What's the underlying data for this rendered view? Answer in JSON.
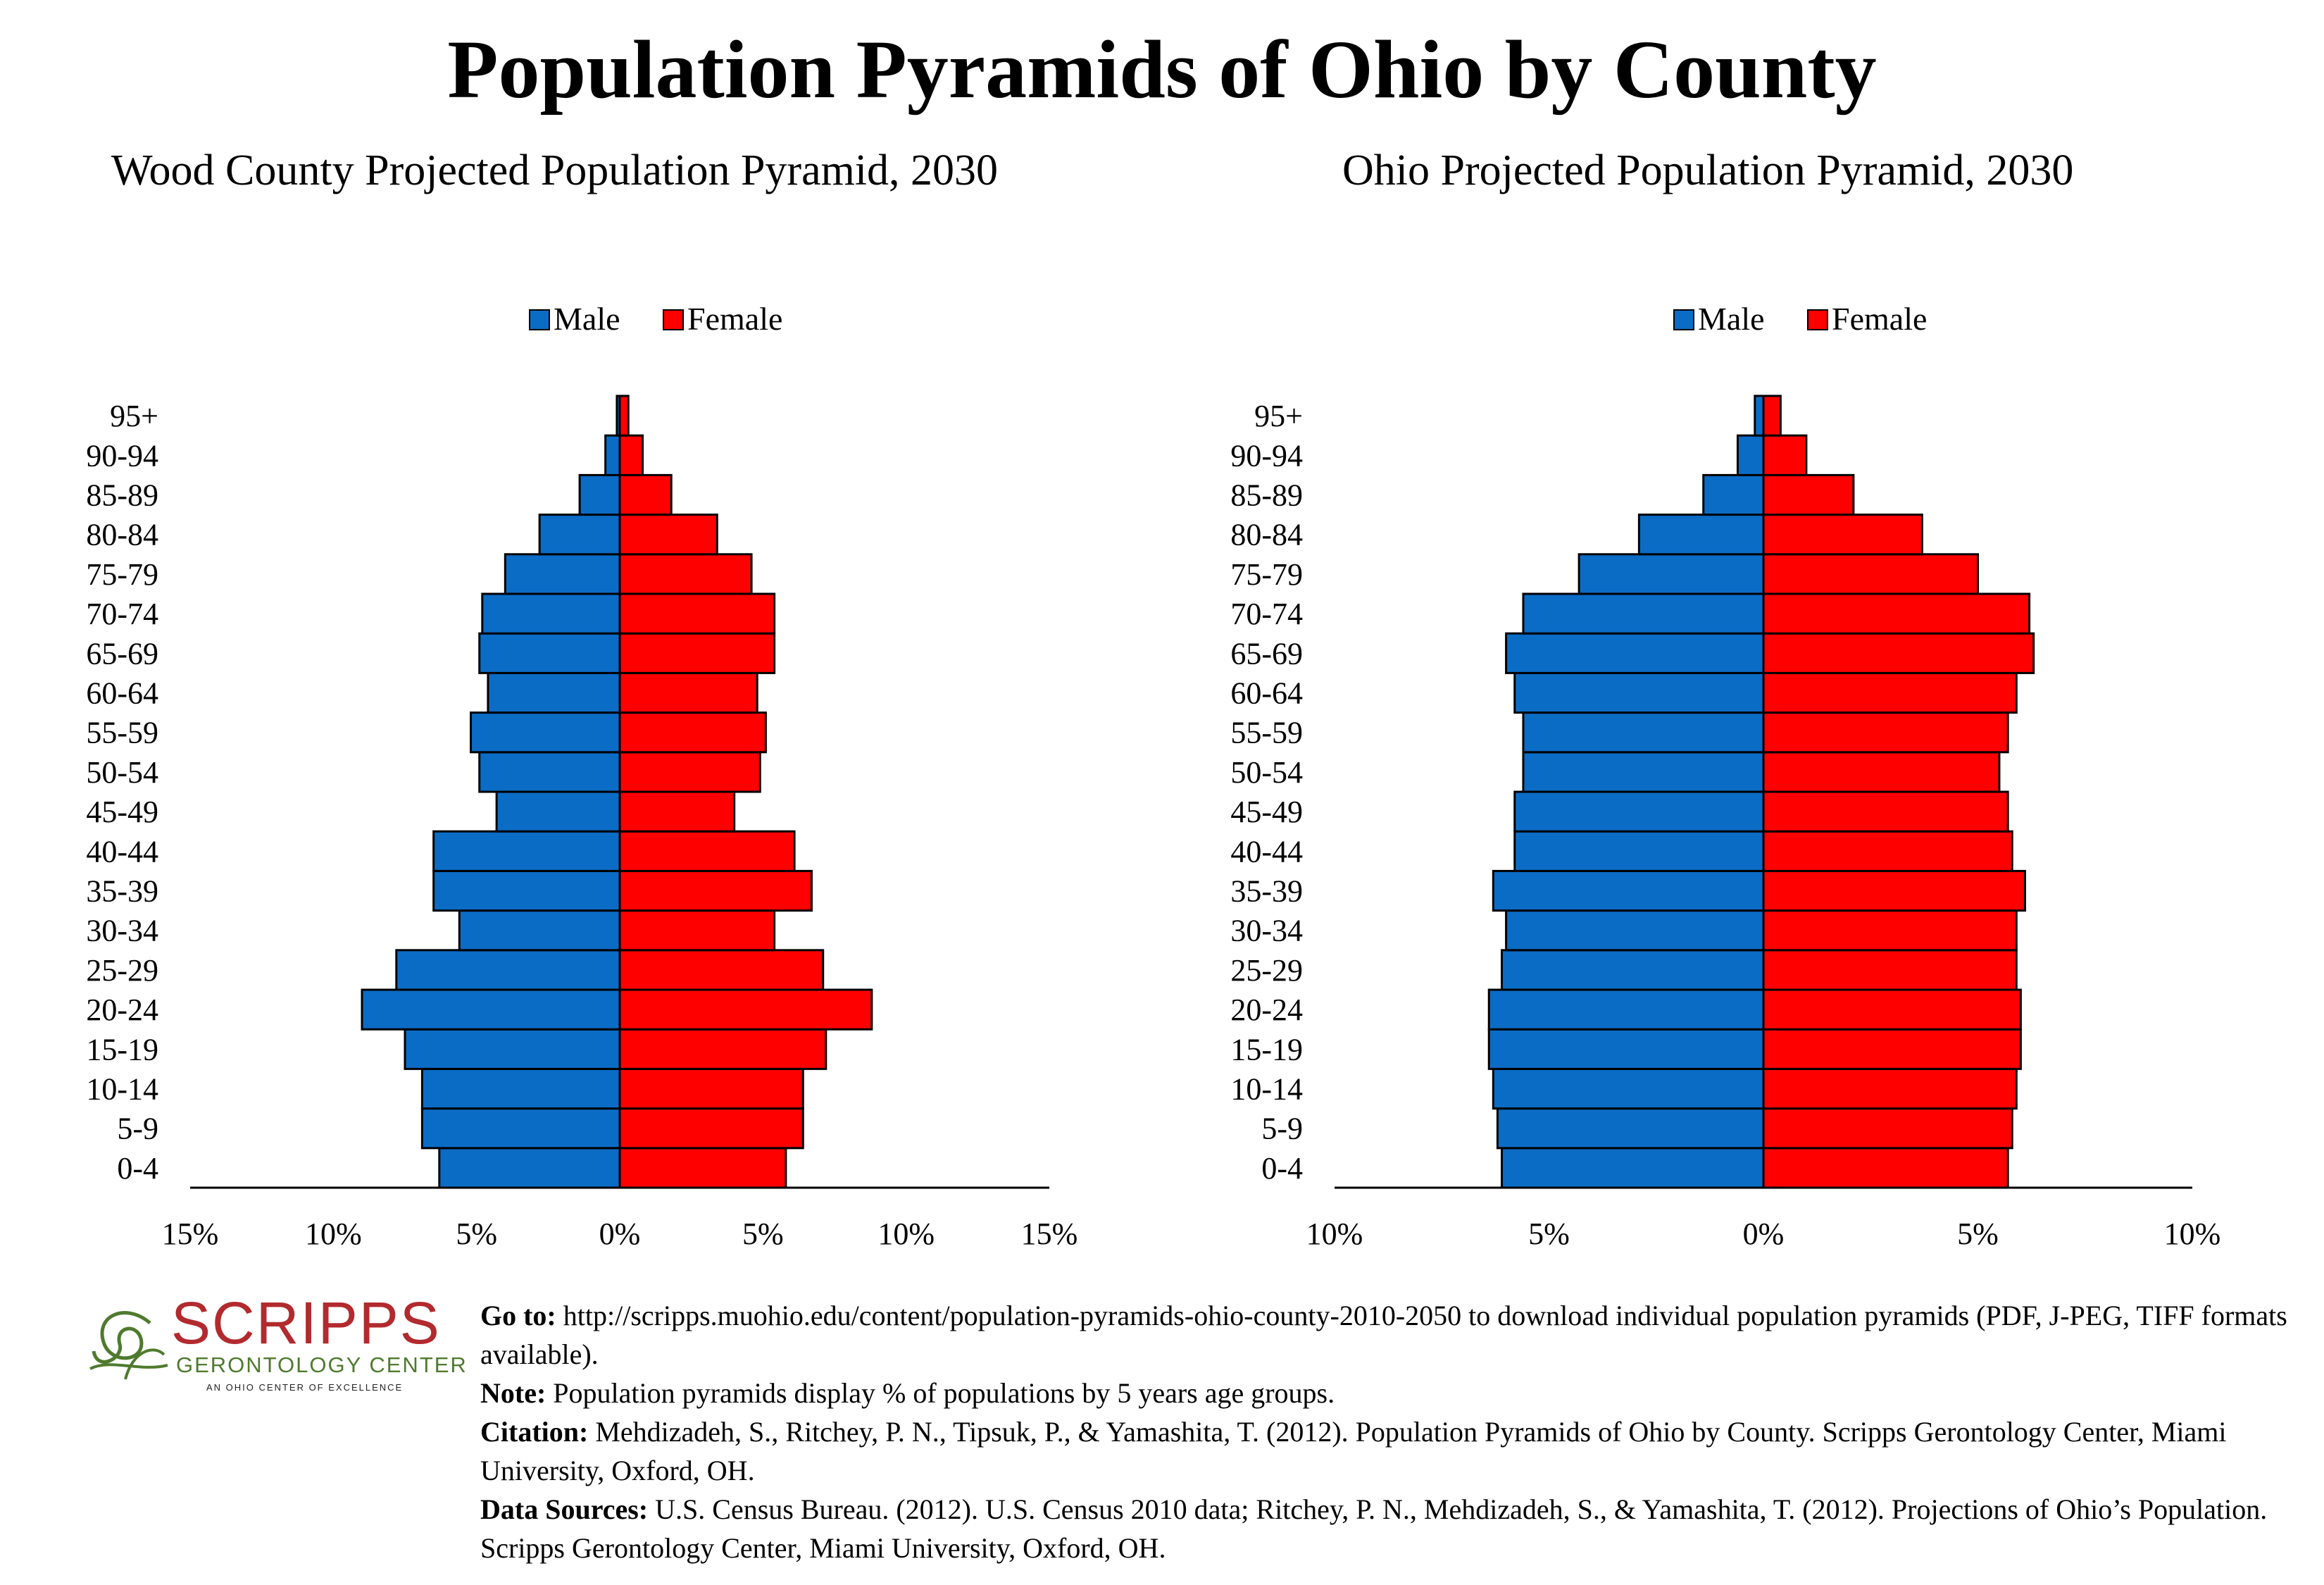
{
  "title": "Population Pyramids of Ohio by County",
  "legend": {
    "male": "Male",
    "female": "Female"
  },
  "colors": {
    "male": "#0b6cc6",
    "female": "#ff0000"
  },
  "chart_data": [
    {
      "type": "bar",
      "title": "Wood County Projected Population Pyramid, 2030",
      "categories": [
        "0-4",
        "5-9",
        "10-14",
        "15-19",
        "20-24",
        "25-29",
        "30-34",
        "35-39",
        "40-44",
        "45-49",
        "50-54",
        "55-59",
        "60-64",
        "65-69",
        "70-74",
        "75-79",
        "80-84",
        "85-89",
        "90-94",
        "95+"
      ],
      "series": [
        {
          "name": "Male",
          "values": [
            6.3,
            6.9,
            6.9,
            7.5,
            9.0,
            7.8,
            5.6,
            6.5,
            6.5,
            4.3,
            4.9,
            5.2,
            4.6,
            4.9,
            4.8,
            4.0,
            2.8,
            1.4,
            0.5,
            0.1
          ]
        },
        {
          "name": "Female",
          "values": [
            5.8,
            6.4,
            6.4,
            7.2,
            8.8,
            7.1,
            5.4,
            6.7,
            6.1,
            4.0,
            4.9,
            5.1,
            4.8,
            5.4,
            5.4,
            4.6,
            3.4,
            1.8,
            0.8,
            0.3
          ]
        }
      ],
      "xlim": [
        -15,
        15
      ],
      "x_ticks": [
        "15%",
        "10%",
        "5%",
        "0%",
        "5%",
        "10%",
        "15%"
      ],
      "legend_position": "top-center"
    },
    {
      "type": "bar",
      "title": "Ohio Projected Population Pyramid, 2030",
      "categories": [
        "0-4",
        "5-9",
        "10-14",
        "15-19",
        "20-24",
        "25-29",
        "30-34",
        "35-39",
        "40-44",
        "45-49",
        "50-54",
        "55-59",
        "60-64",
        "65-69",
        "70-74",
        "75-79",
        "80-84",
        "85-89",
        "90-94",
        "95+"
      ],
      "series": [
        {
          "name": "Male",
          "values": [
            6.1,
            6.2,
            6.3,
            6.4,
            6.4,
            6.1,
            6.0,
            6.3,
            5.8,
            5.8,
            5.6,
            5.6,
            5.8,
            6.0,
            5.6,
            4.3,
            2.9,
            1.4,
            0.6,
            0.2
          ]
        },
        {
          "name": "Female",
          "values": [
            5.7,
            5.8,
            5.9,
            6.0,
            6.0,
            5.9,
            5.9,
            6.1,
            5.8,
            5.7,
            5.5,
            5.7,
            5.9,
            6.3,
            6.2,
            5.0,
            3.7,
            2.1,
            1.0,
            0.4
          ]
        }
      ],
      "xlim": [
        -10,
        10
      ],
      "x_ticks": [
        "10%",
        "5%",
        "0%",
        "5%",
        "10%"
      ],
      "legend_position": "top-center"
    }
  ],
  "footer": {
    "goto_label": "Go to:",
    "goto_text": " http://scripps.muohio.edu/content/population-pyramids-ohio-county-2010-2050 to download individual population pyramids (PDF, J-PEG, TIFF formats available).",
    "note_label": "Note:",
    "note_text": " Population pyramids display % of populations by 5 years age groups.",
    "citation_label": "Citation:",
    "citation_text": " Mehdizadeh, S., Ritchey, P. N., Tipsuk, P., & Yamashita, T. (2012). Population Pyramids of Ohio by County. Scripps Gerontology Center, Miami University, Oxford, OH.",
    "sources_label": "Data Sources:",
    "sources_text": " U.S. Census Bureau. (2012). U.S. Census 2010 data; Ritchey, P. N., Mehdizadeh, S., & Yamashita, T. (2012). Projections of Ohio’s Population. Scripps Gerontology Center, Miami University, Oxford, OH."
  },
  "logo": {
    "name": "SCRIPPS",
    "subtitle": "GERONTOLOGY CENTER",
    "tagline": "AN OHIO CENTER OF EXCELLENCE"
  }
}
